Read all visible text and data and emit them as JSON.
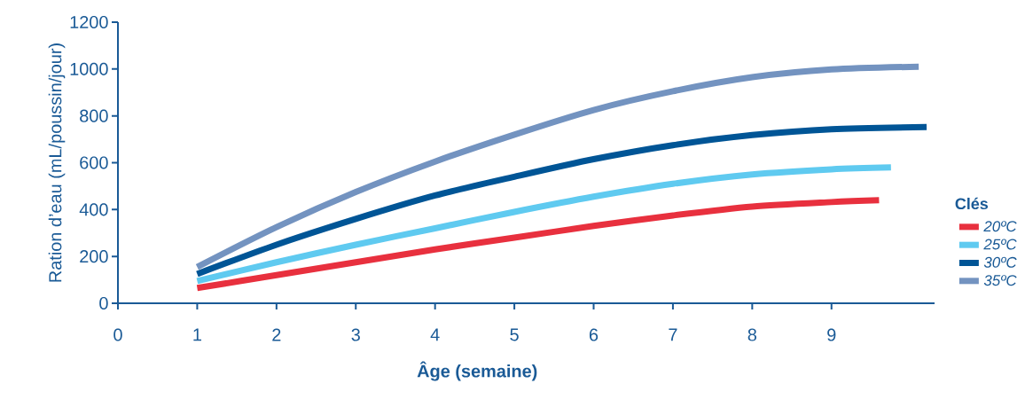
{
  "chart_data": {
    "type": "line",
    "xlabel": "Âge (semaine)",
    "ylabel": "Ration d’eau (mL/poussin/jour)",
    "legend_title": "Clés",
    "legend": "right",
    "xlim": [
      0,
      10.3
    ],
    "ylim": [
      0,
      1200
    ],
    "xticks": [
      0,
      1,
      2,
      3,
      4,
      5,
      6,
      7,
      8,
      9
    ],
    "yticks": [
      0,
      200,
      400,
      600,
      800,
      1000,
      1200
    ],
    "series": [
      {
        "name": "20ºC",
        "color": "#e8303e",
        "x": [
          1,
          2,
          3,
          4,
          5,
          6,
          7,
          8,
          9,
          9.6
        ],
        "values": [
          65,
          120,
          175,
          230,
          280,
          330,
          375,
          413,
          432,
          440
        ]
      },
      {
        "name": "25ºC",
        "color": "#5fcaf0",
        "x": [
          1,
          2,
          3,
          4,
          5,
          6,
          7,
          8,
          9,
          9.75
        ],
        "values": [
          95,
          175,
          250,
          320,
          390,
          455,
          510,
          550,
          572,
          580
        ]
      },
      {
        "name": "30ºC",
        "color": "#005596",
        "x": [
          1,
          2,
          3,
          4,
          5,
          6,
          7,
          8,
          9,
          10.2
        ],
        "values": [
          125,
          250,
          360,
          460,
          540,
          615,
          675,
          718,
          743,
          752
        ]
      },
      {
        "name": "35ºC",
        "color": "#7393c0",
        "x": [
          1,
          2,
          3,
          4,
          5,
          6,
          7,
          8,
          9,
          10.1
        ],
        "values": [
          155,
          325,
          475,
          605,
          720,
          825,
          905,
          965,
          998,
          1010
        ]
      }
    ]
  }
}
